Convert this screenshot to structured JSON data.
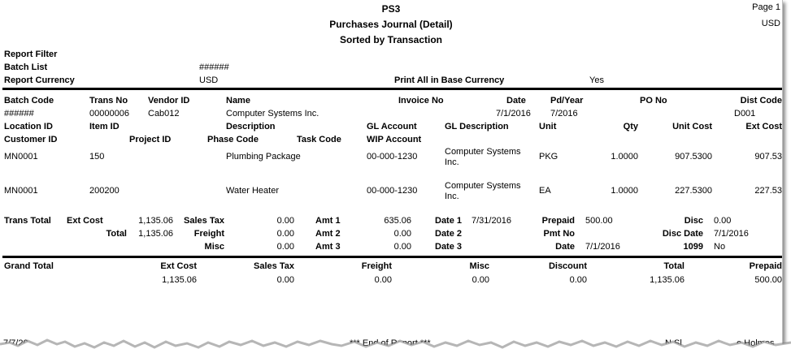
{
  "header": {
    "company": "PS3",
    "report_title": "Purchases Journal (Detail)",
    "sort_title": "Sorted by Transaction",
    "page_label": "Page 1",
    "currency": "USD"
  },
  "filter": {
    "title": "Report Filter",
    "batch_list_label": "Batch List",
    "batch_list_value": "######",
    "report_currency_label": "Report Currency",
    "report_currency_value": "USD",
    "print_base_label": "Print All in Base Currency",
    "print_base_value": "Yes"
  },
  "columns": {
    "row1": {
      "batch_code": "Batch Code",
      "trans_no": "Trans No",
      "vendor_id": "Vendor ID",
      "name": "Name",
      "invoice_no": "Invoice No",
      "date": "Date",
      "pd_year": "Pd/Year",
      "po_no": "PO No",
      "dist_code": "Dist Code"
    },
    "row2": {
      "location_id": "Location ID",
      "item_id": "Item ID",
      "description": "Description",
      "gl_account": "GL Account",
      "gl_description": "GL Description",
      "unit": "Unit",
      "qty": "Qty",
      "unit_cost": "Unit Cost",
      "ext_cost": "Ext Cost"
    },
    "row3": {
      "customer_id": "Customer ID",
      "project_id": "Project ID",
      "phase_code": "Phase Code",
      "task_code": "Task Code",
      "wip_account": "WIP Account"
    }
  },
  "transaction": {
    "batch_code": "######",
    "trans_no": "00000006",
    "vendor_id": "Cab012",
    "name": "Computer Systems Inc.",
    "date": "7/1/2016",
    "pd_year": "7/2016",
    "dist_code": "D001"
  },
  "lines": [
    {
      "location": "MN0001",
      "item": "150",
      "description": "Plumbing Package",
      "gl_account": "00-000-1230",
      "gl_desc_1": "Computer Systems",
      "gl_desc_2": "Inc.",
      "unit": "PKG",
      "qty": "1.0000",
      "unit_cost": "907.5300",
      "ext_cost": "907.53"
    },
    {
      "location": "MN0001",
      "item": "200200",
      "description": "Water Heater",
      "gl_account": "00-000-1230",
      "gl_desc_1": "Computer Systems",
      "gl_desc_2": "Inc.",
      "unit": "EA",
      "qty": "1.0000",
      "unit_cost": "227.5300",
      "ext_cost": "227.53"
    }
  ],
  "trans_total": {
    "label": "Trans Total",
    "ext_cost_label": "Ext Cost",
    "ext_cost": "1,135.06",
    "total_label": "Total",
    "total": "1,135.06",
    "sales_tax_label": "Sales Tax",
    "sales_tax": "0.00",
    "freight_label": "Freight",
    "freight": "0.00",
    "misc_label": "Misc",
    "misc": "0.00",
    "amt1_label": "Amt 1",
    "amt1": "635.06",
    "amt2_label": "Amt 2",
    "amt2": "0.00",
    "amt3_label": "Amt 3",
    "amt3": "0.00",
    "date1_label": "Date 1",
    "date1": "7/31/2016",
    "date2_label": "Date 2",
    "date3_label": "Date 3",
    "prepaid_label": "Prepaid",
    "prepaid": "500.00",
    "pmt_no_label": "Pmt No",
    "date_label": "Date",
    "date": "7/1/2016",
    "disc_label": "Disc",
    "disc": "0.00",
    "disc_date_label": "Disc Date",
    "disc_date": "7/1/2016",
    "form1099_label": "1099",
    "form1099": "No"
  },
  "grand_total": {
    "label": "Grand Total",
    "headers": {
      "ext_cost": "Ext Cost",
      "sales_tax": "Sales Tax",
      "freight": "Freight",
      "misc": "Misc",
      "discount": "Discount",
      "total": "Total",
      "prepaid": "Prepaid"
    },
    "values": {
      "ext_cost": "1,135.06",
      "sales_tax": "0.00",
      "freight": "0.00",
      "misc": "0.00",
      "discount": "0.00",
      "total": "1,135.06",
      "prepaid": "500.00"
    }
  },
  "footer": {
    "date_fragment": "7/7/20",
    "end_of_report": "*** End of Report ***",
    "user_fragment": "N Sl",
    "name_fragment": "e Holmes"
  },
  "colors": {
    "rule": "#000000",
    "shadow": "#7a7a7a",
    "border": "#bdbdbd"
  }
}
